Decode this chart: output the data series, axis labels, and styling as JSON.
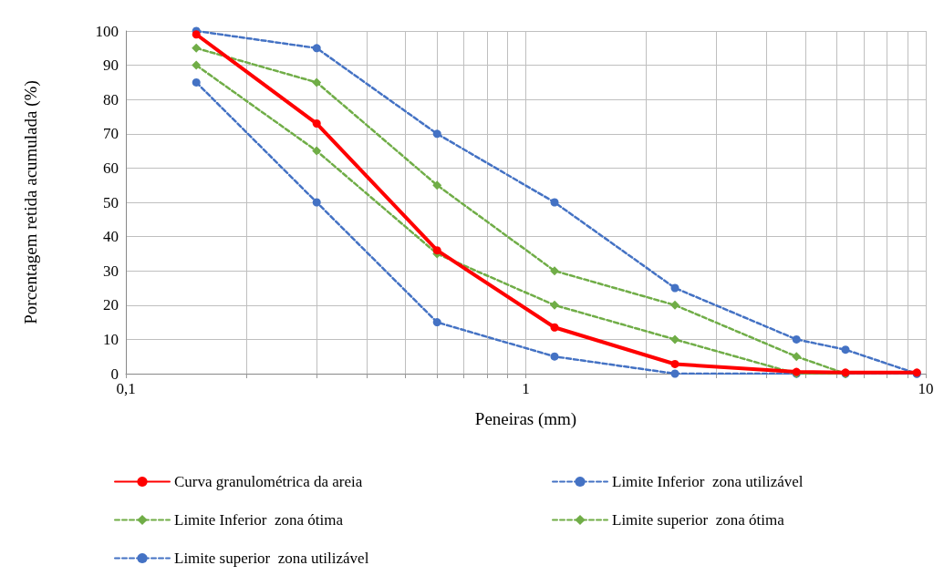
{
  "chart_data": {
    "type": "line",
    "xlabel": "Peneiras (mm)",
    "ylabel": "Porcentagem retida acumulada (%)",
    "log": "x",
    "grid": true,
    "legend": "bottom",
    "xlim": [
      0.1,
      10
    ],
    "xticks": [
      {
        "value": 0.1,
        "label": "0,1"
      },
      {
        "value": 0.2,
        "label": null
      },
      {
        "value": 0.3,
        "label": null
      },
      {
        "value": 0.4,
        "label": null
      },
      {
        "value": 0.5,
        "label": null
      },
      {
        "value": 0.6,
        "label": null
      },
      {
        "value": 0.7,
        "label": null
      },
      {
        "value": 0.8,
        "label": null
      },
      {
        "value": 0.9,
        "label": null
      },
      1,
      {
        "value": 2,
        "label": null
      },
      {
        "value": 3,
        "label": null
      },
      {
        "value": 4,
        "label": null
      },
      {
        "value": 5,
        "label": null
      },
      {
        "value": 6,
        "label": null
      },
      {
        "value": 7,
        "label": null
      },
      {
        "value": 8,
        "label": null
      },
      {
        "value": 9,
        "label": null
      },
      10
    ],
    "ylim": [
      0,
      100
    ],
    "yticks": [
      0,
      10,
      20,
      30,
      40,
      50,
      60,
      70,
      80,
      90,
      100
    ],
    "x": [
      0.15,
      0.3,
      0.6,
      1.18,
      2.36,
      4.75,
      6.3,
      9.5
    ],
    "series": [
      {
        "name": "Curva granulométrica da areia",
        "color": "#ff0000",
        "marker": "circle",
        "line_style": "solid",
        "values": [
          99,
          73,
          36,
          13.5,
          2.8,
          0.5,
          0.3,
          0.3
        ]
      },
      {
        "name": "Limite Inferior  zona utilizável",
        "color": "#4472c4",
        "marker": "circle",
        "line_style": "dashed",
        "values": [
          85,
          50,
          15,
          5,
          0,
          0,
          0,
          0
        ]
      },
      {
        "name": "Limite Inferior  zona ótima",
        "color": "#70ad47",
        "marker": "diamond",
        "line_style": "dashed",
        "values": [
          90,
          65,
          35,
          20,
          10,
          0,
          0,
          null
        ]
      },
      {
        "name": "Limite superior  zona ótima",
        "color": "#70ad47",
        "marker": "diamond",
        "line_style": "dashed",
        "values": [
          95,
          85,
          55,
          30,
          20,
          5,
          0,
          null
        ]
      },
      {
        "name": "Limite superior  zona utilizável",
        "color": "#4472c4",
        "marker": "circle",
        "line_style": "dashed",
        "values": [
          100,
          95,
          70,
          50,
          25,
          10,
          7,
          0
        ]
      }
    ]
  }
}
